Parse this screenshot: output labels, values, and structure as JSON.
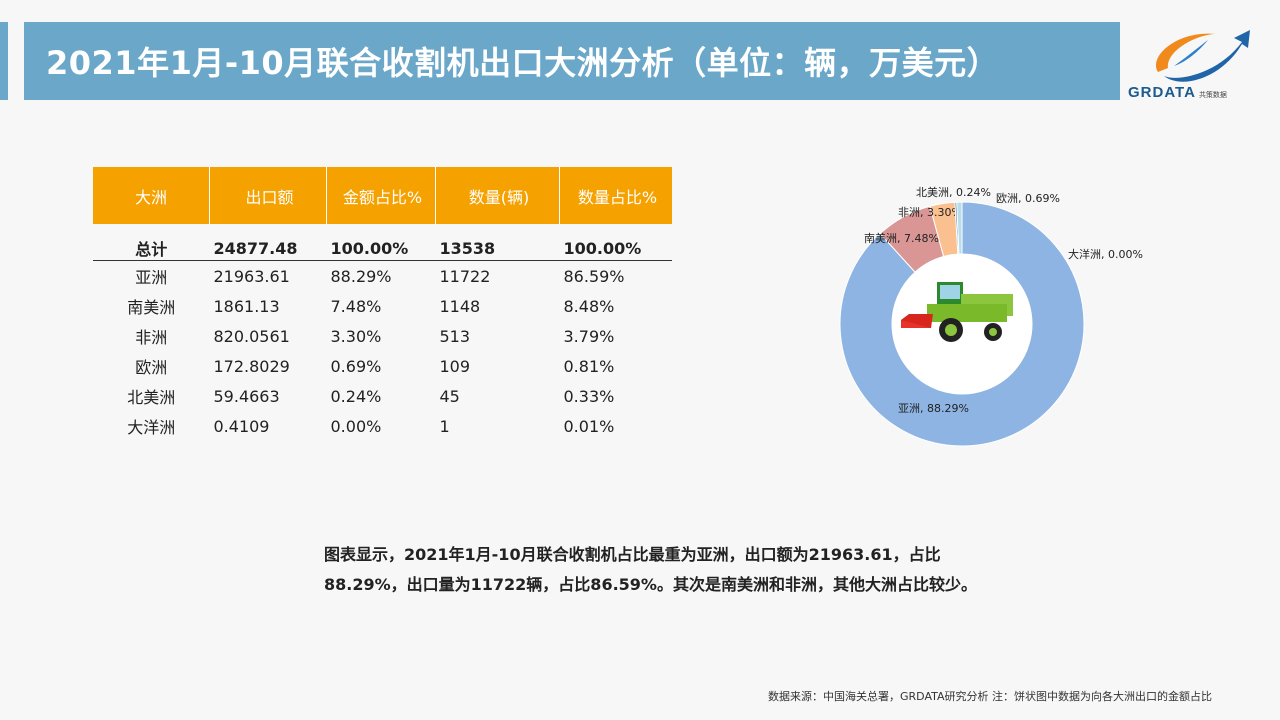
{
  "title": "2021年1月-10月联合收割机出口大洲分析（单位：辆，万美元）",
  "logo": {
    "text": "GRDATA",
    "sub": "共策数据"
  },
  "table": {
    "headers": [
      "大洲",
      "出口额",
      "金额占比%",
      "数量(辆)",
      "数量占比%"
    ],
    "total": [
      "总计",
      "24877.48",
      "100.00%",
      "13538",
      "100.00%"
    ],
    "rows": [
      [
        "亚洲",
        "21963.61",
        "88.29%",
        "11722",
        "86.59%"
      ],
      [
        "南美洲",
        "1861.13",
        "7.48%",
        "1148",
        "8.48%"
      ],
      [
        "非洲",
        "820.0561",
        "3.30%",
        "513",
        "3.79%"
      ],
      [
        "欧洲",
        "172.8029",
        "0.69%",
        "109",
        "0.81%"
      ],
      [
        "北美洲",
        "59.4663",
        "0.24%",
        "45",
        "0.33%"
      ],
      [
        "大洋洲",
        "0.4109",
        "0.00%",
        "1",
        "0.01%"
      ]
    ]
  },
  "chart_data": {
    "type": "pie",
    "donut": true,
    "slices": [
      {
        "name": "亚洲",
        "value": 88.29,
        "label": "亚洲, 88.29%",
        "color": "#8eb4e3"
      },
      {
        "name": "南美洲",
        "value": 7.48,
        "label": "南美洲, 7.48%",
        "color": "#d99694"
      },
      {
        "name": "非洲",
        "value": 3.3,
        "label": "非洲, 3.30%",
        "color": "#fac090"
      },
      {
        "name": "北美洲",
        "value": 0.24,
        "label": "北美洲, 0.24%",
        "color": "#4f81bd"
      },
      {
        "name": "欧洲",
        "value": 0.69,
        "label": "欧洲, 0.69%",
        "color": "#b7dee8"
      },
      {
        "name": "大洋洲",
        "value": 0.0,
        "label": "大洋洲, 0.00%",
        "color": "#9bbb59"
      }
    ],
    "legend": "none"
  },
  "description": "图表显示，2021年1月-10月联合收割机占比最重为亚洲，出口额为21963.61，占比88.29%，出口量为11722辆，占比86.59%。其次是南美洲和非洲，其他大洲占比较少。",
  "source": "数据来源：中国海关总署，GRDATA研究分析  注：饼状图中数据为向各大洲出口的金额占比"
}
